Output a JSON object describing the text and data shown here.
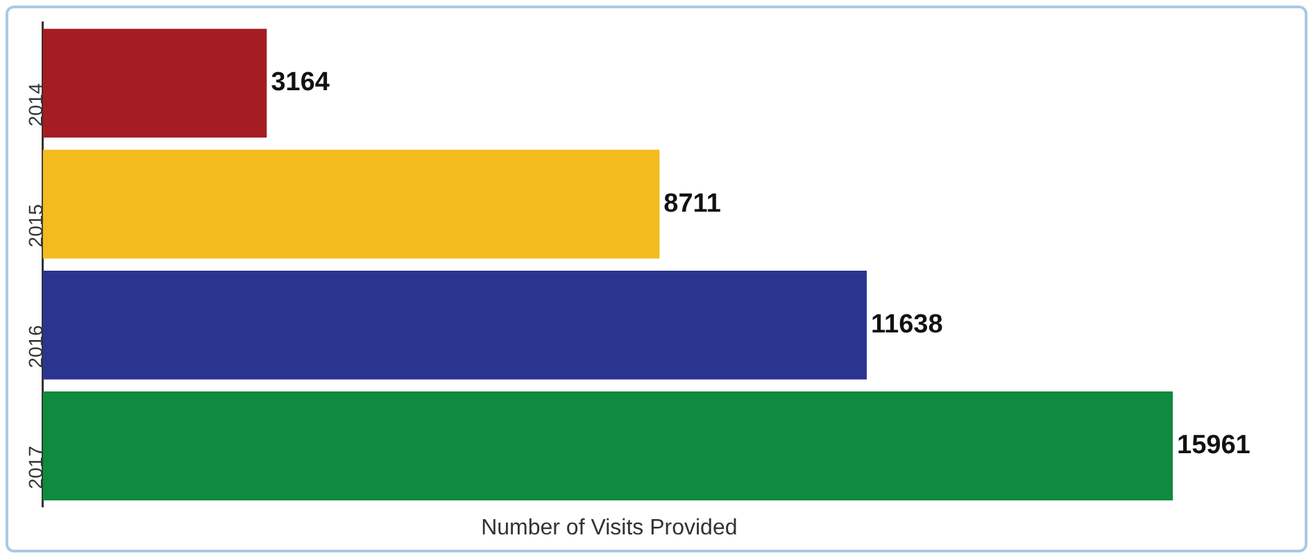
{
  "chart_data": {
    "type": "bar",
    "orientation": "horizontal",
    "xlabel": "Number of Visits Provided",
    "categories": [
      "2014",
      "2015",
      "2016",
      "2017"
    ],
    "values": [
      3164,
      8711,
      11638,
      15961
    ],
    "colors": [
      "#a51c22",
      "#f3bb1e",
      "#2b3590",
      "#0f8a3e"
    ],
    "data_labels": true,
    "grid": false,
    "legend": false,
    "tick_labels": "y"
  }
}
